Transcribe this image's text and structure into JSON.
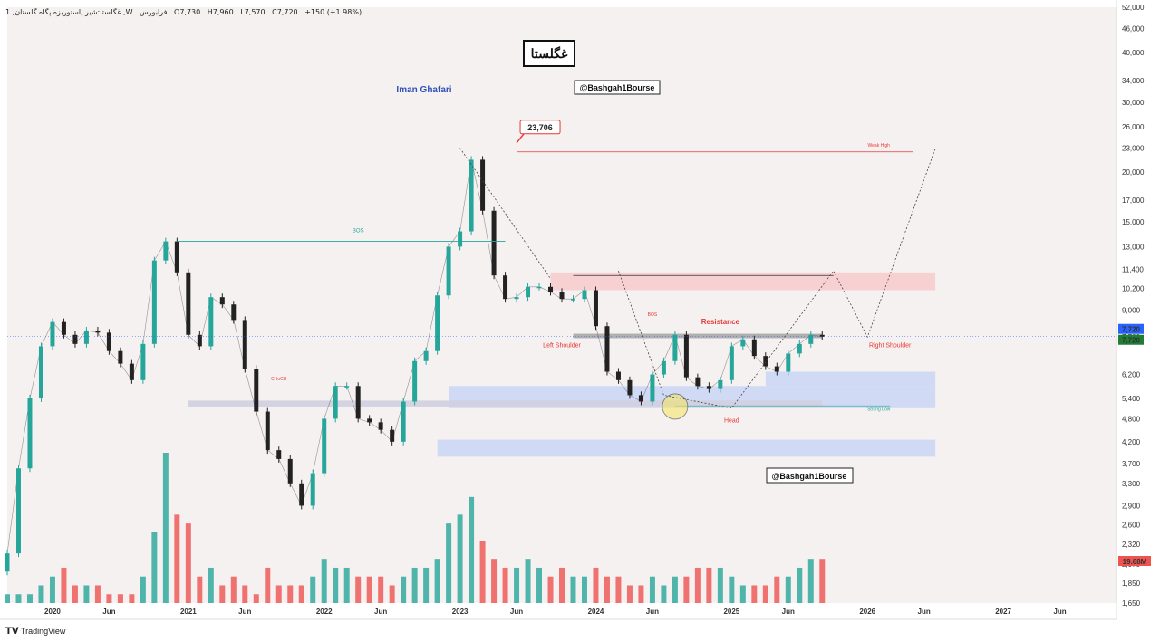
{
  "header": {
    "symbol": "1 ,غگلستا:شیر پاستوریزه پگاه گلستان ,W",
    "exchange": "فرابورس",
    "open": "O7,730",
    "high": "H7,960",
    "low": "L7,570",
    "close": "C7,720",
    "change": "+150 (+1.98%)"
  },
  "title_box": "غگلستا",
  "author": "Iman Ghafari",
  "handle_top": "@Bashgah1Bourse",
  "handle_bottom": "@Bashgah1Bourse",
  "branding": "TradingView",
  "colors": {
    "up": "#26a69a",
    "down": "#ef5350",
    "supply_zone": "#f7c5c5",
    "demand_zone": "#c9d6f5",
    "author": "#3050b8",
    "label_red": "#e53935",
    "label_green": "#26a69a",
    "price_tag": "#2962ff",
    "volume_tag": "#ef5350"
  },
  "chart_data": {
    "type": "line",
    "title": "غگلستا",
    "scale": "log",
    "ylim": [
      1650,
      52000
    ],
    "y_ticks": [
      "52,000",
      "46,000",
      "40,000",
      "34,000",
      "30,000",
      "26,000",
      "23,000",
      "20,000",
      "17,000",
      "15,000",
      "13,000",
      "11,400",
      "10,200",
      "9,000",
      "7,700",
      "6,200",
      "5,400",
      "4,800",
      "4,200",
      "3,700",
      "3,300",
      "2,900",
      "2,600",
      "2,320",
      "2,070",
      "1,850",
      "1,650"
    ],
    "y_tick_values": [
      52000,
      46000,
      40000,
      34000,
      30000,
      26000,
      23000,
      20000,
      17000,
      15000,
      13000,
      11400,
      10200,
      9000,
      7700,
      6200,
      5400,
      4800,
      4200,
      3700,
      3300,
      2900,
      2600,
      2320,
      2070,
      1850,
      1650
    ],
    "x_ticks": [
      "2020",
      "Jun",
      "2021",
      "Jun",
      "2022",
      "Jun",
      "2023",
      "Jun",
      "2024",
      "Jun",
      "2025",
      "Jun",
      "2026",
      "Jun",
      "2027",
      "Jun"
    ],
    "x_tick_dates": [
      "2020-01",
      "2020-06",
      "2021-01",
      "2021-06",
      "2022-01",
      "2022-06",
      "2023-01",
      "2023-06",
      "2024-01",
      "2024-06",
      "2025-01",
      "2025-06",
      "2026-01",
      "2026-06",
      "2027-01",
      "2027-06"
    ],
    "series": [
      {
        "values_x": [
          "2019-09",
          "2019-10",
          "2019-11",
          "2019-12",
          "2020-01",
          "2020-02",
          "2020-03",
          "2020-04",
          "2020-05",
          "2020-06",
          "2020-07",
          "2020-08",
          "2020-09",
          "2020-10",
          "2020-11",
          "2020-12",
          "2021-01",
          "2021-02",
          "2021-03",
          "2021-04",
          "2021-05",
          "2021-06",
          "2021-07",
          "2021-08",
          "2021-09",
          "2021-10",
          "2021-11",
          "2021-12",
          "2022-01",
          "2022-02",
          "2022-03",
          "2022-04",
          "2022-05",
          "2022-06",
          "2022-07",
          "2022-08",
          "2022-09",
          "2022-10",
          "2022-11",
          "2022-12",
          "2023-01",
          "2023-02",
          "2023-03",
          "2023-04",
          "2023-05",
          "2023-06",
          "2023-07",
          "2023-08",
          "2023-09",
          "2023-10",
          "2023-11",
          "2023-12",
          "2024-01",
          "2024-02",
          "2024-03",
          "2024-04",
          "2024-05",
          "2024-06",
          "2024-07",
          "2024-08",
          "2024-09",
          "2024-10",
          "2024-11",
          "2024-12",
          "2025-01",
          "2025-02",
          "2025-03",
          "2025-04",
          "2025-05",
          "2025-06",
          "2025-07",
          "2025-08",
          "2025-09"
        ],
        "values": [
          2200,
          3600,
          5400,
          7300,
          8400,
          7800,
          7400,
          8000,
          7900,
          7100,
          6600,
          6000,
          7400,
          12000,
          13400,
          11200,
          7800,
          7300,
          9700,
          9300,
          8500,
          6400,
          5000,
          4000,
          3800,
          3300,
          2900,
          3500,
          4800,
          5800,
          5800,
          4800,
          4700,
          4500,
          4200,
          5300,
          6700,
          7100,
          9800,
          13000,
          14200,
          21500,
          16000,
          11000,
          9600,
          9700,
          10300,
          10300,
          10000,
          9600,
          9600,
          10100,
          8200,
          6300,
          6000,
          5500,
          5300,
          6200,
          6700,
          7800,
          6100,
          5800,
          5700,
          6000,
          7300,
          7600,
          6900,
          6500,
          6300,
          7000,
          7400,
          7800,
          7720
        ]
      }
    ],
    "volume": {
      "last_label": "19.68M",
      "values": [
        1,
        1,
        1,
        2,
        3,
        4,
        2,
        2,
        2,
        1,
        1,
        1,
        3,
        8,
        17,
        10,
        9,
        3,
        4,
        2,
        3,
        2,
        1,
        4,
        2,
        2,
        2,
        3,
        5,
        4,
        4,
        3,
        3,
        3,
        2,
        3,
        4,
        4,
        5,
        9,
        10,
        12,
        7,
        5,
        4,
        4,
        5,
        4,
        3,
        4,
        3,
        3,
        4,
        3,
        3,
        2,
        2,
        3,
        2,
        3,
        3,
        4,
        4,
        4,
        3,
        2,
        2,
        2,
        3,
        3,
        4,
        5,
        5
      ]
    },
    "annotations": {
      "peak_label": "23,706",
      "weak_high": "Weak High",
      "strong_low": "Strong Low",
      "resistance": "Resistance",
      "left_shoulder": "Left Shoulder",
      "right_shoulder": "Right Shoulder",
      "head": "Head",
      "bos": "BOS",
      "choch": "CHoCH",
      "current_price_1": "7,720",
      "current_price_2": "7,720"
    }
  }
}
